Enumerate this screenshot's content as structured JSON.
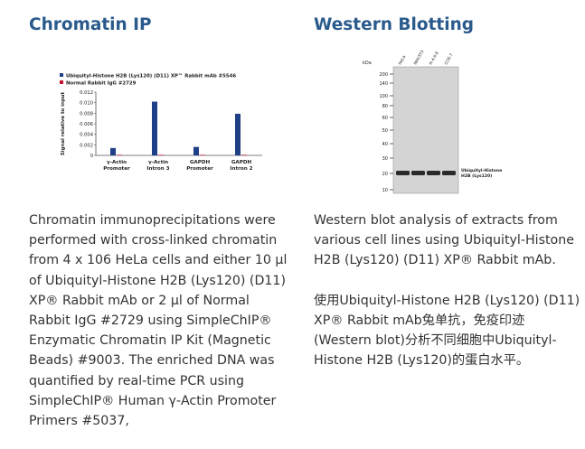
{
  "left": {
    "heading": "Chromatin IP",
    "description": "Chromatin immunoprecipitations were performed with cross-linked chromatin from 4 x 106 HeLa cells and either 10 µl of Ubiquityl-Histone H2B (Lys120) (D11) XP® Rabbit mAb or 2 µl of Normal Rabbit IgG #2729 using SimpleChIP® Enzymatic Chromatin IP Kit (Magnetic Beads) #9003. The enriched DNA was quantified by real-time PCR using SimpleChIP® Human γ-Actin Promoter Primers #5037,",
    "chart_data": {
      "type": "bar",
      "title": "",
      "ylabel": "Signal relative to input",
      "xlabel": "",
      "ylim": [
        0,
        0.012
      ],
      "yticks": [
        "0",
        "0.002",
        "0.004",
        "0.006",
        "0.008",
        "0.010",
        "0.012"
      ],
      "categories": [
        [
          "γ-Actin",
          "Promoter"
        ],
        [
          "γ-Actin",
          "Intron 3"
        ],
        [
          "GAPDH",
          "Promoter"
        ],
        [
          "GAPDH",
          "Intron 2"
        ]
      ],
      "series": [
        {
          "name": "Ubiquityl-Histone H2B (Lys120) (D11) XP™ Rabbit mAb #5546",
          "color": "#1f3f86",
          "values": [
            0.0014,
            0.0102,
            0.0016,
            0.0079
          ]
        },
        {
          "name": "Normal Rabbit IgG #2729",
          "color": "#c8102e",
          "values": [
            0.0001,
            0.0001,
            0.0001,
            0.0001
          ]
        }
      ]
    }
  },
  "right": {
    "heading": "Western Blotting",
    "description_en": "Western blot analysis of extracts from various cell lines using Ubiquityl-Histone H2B (Lys120) (D11) XP® Rabbit mAb.",
    "description_zh": "使用Ubiquityl-Histone H2B (Lys120) (D11) XP® Rabbit mAb兔单抗，免疫印迹(Western blot)分析不同细胞中Ubiquityl-Histone H2B (Lys120)的蛋白水平。",
    "blot": {
      "kda_label": "kDa",
      "markers": [
        "200",
        "140",
        "100",
        "80",
        "60",
        "50",
        "40",
        "30",
        "20",
        "10"
      ],
      "lanes": [
        "HeLa",
        "NIH/3T3",
        "H-4-II-E",
        "COS-7"
      ],
      "band_label": [
        "Ubiquityl-Histone",
        "H2B (Lys120)"
      ],
      "colors": {
        "lane_bg": "#d4d4d4",
        "band": "#2a2a2a"
      }
    }
  }
}
